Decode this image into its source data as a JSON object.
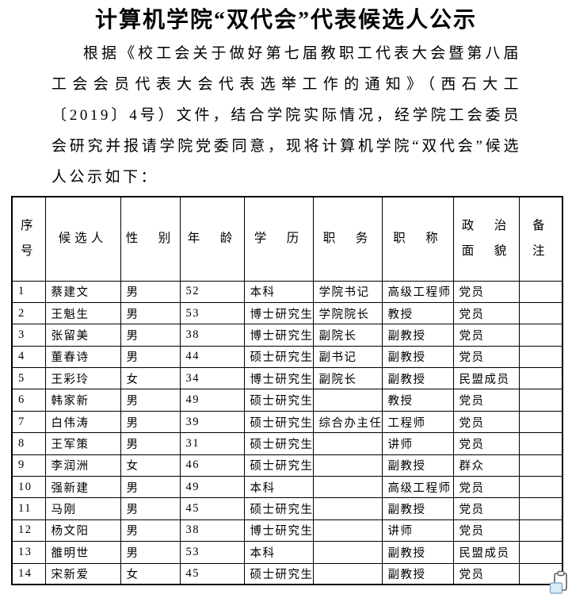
{
  "page": {
    "title": "计算机学院“双代会”代表候选人公示",
    "paragraph": "根据《校工会关于做好第七届教职工代表大会暨第八届工会会员代表大会代表选举工作的通知》（西石大工〔2019〕4号）文件，结合学院实际情况，经学院工会委员会研究并报请学院党委同意，现将计算机学院“双代会”候选人公示如下："
  },
  "table": {
    "headers": [
      "序\n号",
      "候选人",
      "性　别",
      "年　龄",
      "学　历",
      "职　务",
      "职　称",
      "政　治\n面　貌",
      "备\n注"
    ],
    "header_labels": [
      "序号",
      "候选人",
      "性别",
      "年龄",
      "学历",
      "职务",
      "职称",
      "政治面貌",
      "备注"
    ],
    "rows": [
      [
        "1",
        "蔡建文",
        "男",
        "52",
        "本科",
        "学院书记",
        "高级工程师",
        "党员",
        ""
      ],
      [
        "2",
        "王魁生",
        "男",
        "53",
        "博士研究生",
        "学院院长",
        "教授",
        "党员",
        ""
      ],
      [
        "3",
        "张留美",
        "男",
        "38",
        "博士研究生",
        "副院长",
        "副教授",
        "党员",
        ""
      ],
      [
        "4",
        "董春诗",
        "男",
        "44",
        "硕士研究生",
        "副书记",
        "副教授",
        "党员",
        ""
      ],
      [
        "5",
        "王彩玲",
        "女",
        "34",
        "博士研究生",
        "副院长",
        "副教授",
        "民盟成员",
        ""
      ],
      [
        "6",
        "韩家新",
        "男",
        "49",
        "硕士研究生",
        "",
        "教授",
        "党员",
        ""
      ],
      [
        "7",
        "白伟涛",
        "男",
        "39",
        "硕士研究生",
        "综合办主任",
        "工程师",
        "党员",
        ""
      ],
      [
        "8",
        "王军策",
        "男",
        "31",
        "硕士研究生",
        "",
        "讲师",
        "党员",
        ""
      ],
      [
        "9",
        "李润洲",
        "女",
        "46",
        "硕士研究生",
        "",
        "副教授",
        "群众",
        ""
      ],
      [
        "10",
        "强新建",
        "男",
        "49",
        "本科",
        "",
        "高级工程师",
        "党员",
        ""
      ],
      [
        "11",
        "马刚",
        "男",
        "45",
        "硕士研究生",
        "",
        "副教授",
        "党员",
        ""
      ],
      [
        "12",
        "杨文阳",
        "男",
        "38",
        "博士研究生",
        "",
        "讲师",
        "党员",
        ""
      ],
      [
        "13",
        "雒明世",
        "男",
        "53",
        "本科",
        "",
        "副教授",
        "民盟成员",
        ""
      ],
      [
        "14",
        "宋新爱",
        "女",
        "45",
        "硕士研究生",
        "",
        "副教授",
        "党员",
        ""
      ]
    ]
  },
  "colors": {
    "text": "#000000",
    "background": "#ffffff",
    "note_icon_fill": "#d9eaf7",
    "note_icon_border": "#7d9fba"
  }
}
